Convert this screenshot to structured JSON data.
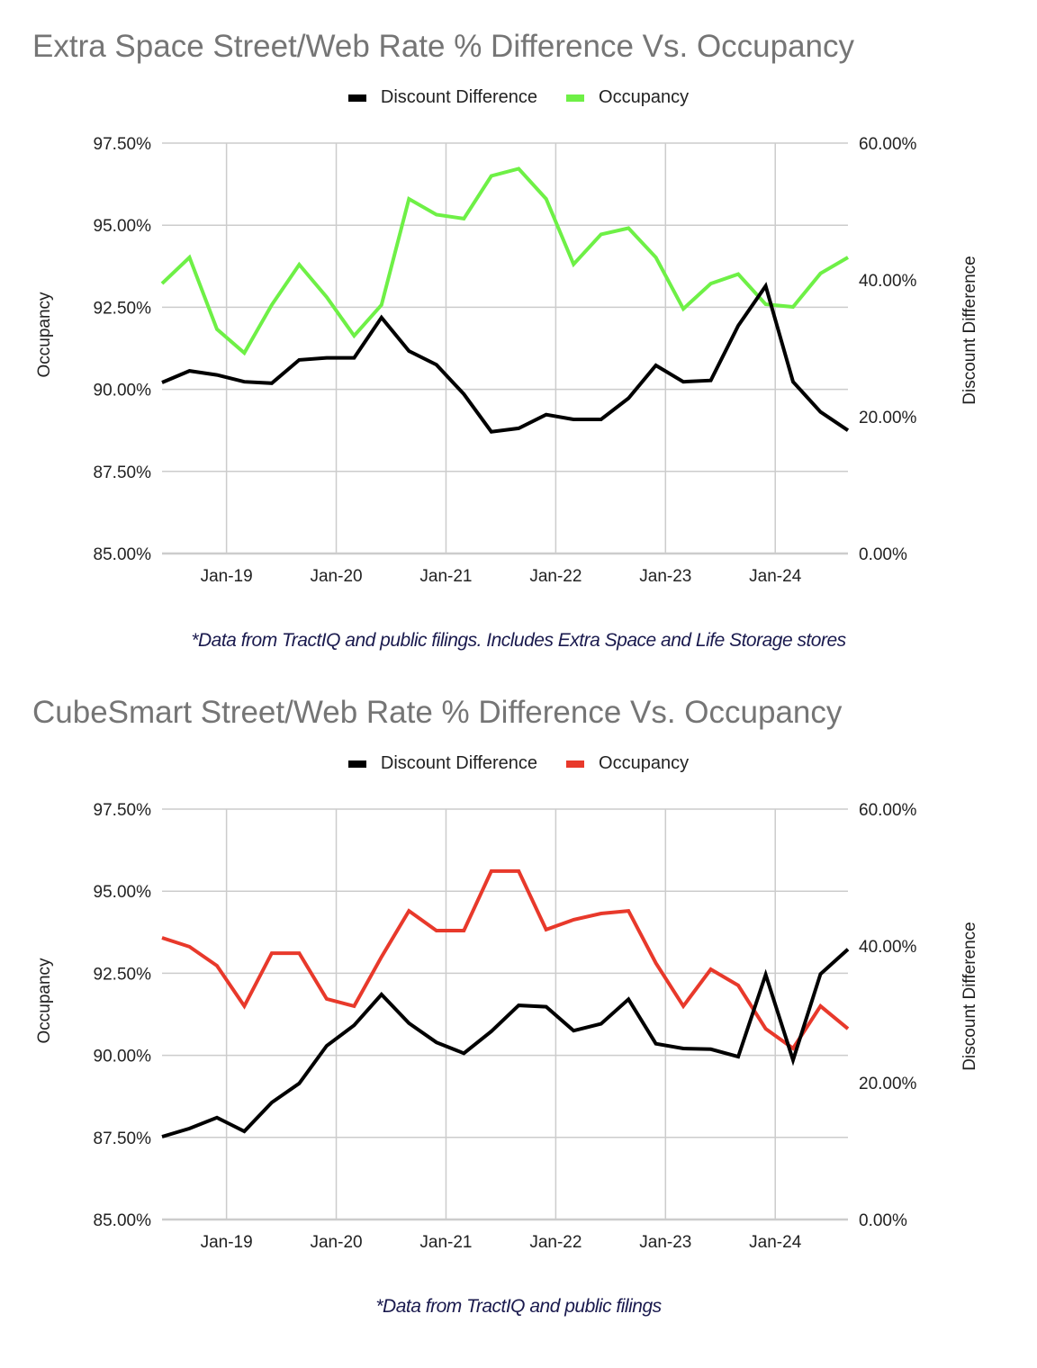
{
  "chart_data": [
    {
      "type": "line",
      "title": "Extra Space Street/Web Rate % Difference Vs. Occupancy",
      "footnote": "*Data from TractIQ and public filings. Includes Extra Space and Life Storage stores",
      "ylabel_left": "Occupancy",
      "ylabel_right": "Discount Difference",
      "xlabel": "",
      "x_ticks": [
        "Jan-19",
        "Jan-20",
        "Jan-21",
        "Jan-22",
        "Jan-23",
        "Jan-24"
      ],
      "y_left_ticks": [
        "97.50%",
        "95.00%",
        "92.50%",
        "90.00%",
        "87.50%",
        "85.00%"
      ],
      "y_right_ticks": [
        "60.00%",
        "40.00%",
        "20.00%",
        "0.00%"
      ],
      "ylim_left": [
        85,
        97.5
      ],
      "ylim_right": [
        0,
        60
      ],
      "grid": true,
      "legend_position": "top-center",
      "x_unit": "quarter",
      "x_first_tick_index": 2.35,
      "points_per_tick": 4,
      "series": [
        {
          "name": "Discount Difference",
          "axis": "right",
          "color": "#000000",
          "values": [
            25.0,
            26.7,
            26.1,
            25.1,
            24.9,
            28.3,
            28.6,
            28.6,
            34.5,
            29.6,
            27.6,
            23.3,
            17.8,
            18.3,
            20.3,
            19.6,
            19.6,
            22.7,
            27.5,
            25.1,
            25.3,
            33.3,
            39.1,
            25.1,
            20.7,
            18.0
          ]
        },
        {
          "name": "Occupancy",
          "axis": "left",
          "color": "#6ef046",
          "values": [
            93.22,
            94.02,
            91.83,
            91.11,
            92.57,
            93.8,
            92.81,
            91.63,
            92.57,
            95.8,
            95.32,
            95.2,
            96.5,
            96.72,
            95.8,
            93.81,
            94.72,
            94.91,
            94.02,
            92.45,
            93.22,
            93.51,
            92.59,
            92.51,
            93.53,
            94.02
          ]
        }
      ]
    },
    {
      "type": "line",
      "title": "CubeSmart Street/Web Rate % Difference Vs. Occupancy",
      "footnote": "*Data from TractIQ and public filings",
      "ylabel_left": "Occupancy",
      "ylabel_right": "Discount Difference",
      "xlabel": "",
      "x_ticks": [
        "Jan-19",
        "Jan-20",
        "Jan-21",
        "Jan-22",
        "Jan-23",
        "Jan-24"
      ],
      "y_left_ticks": [
        "97.50%",
        "95.00%",
        "92.50%",
        "90.00%",
        "87.50%",
        "85.00%"
      ],
      "y_right_ticks": [
        "60.00%",
        "40.00%",
        "20.00%",
        "0.00%"
      ],
      "ylim_left": [
        85,
        97.5
      ],
      "ylim_right": [
        0,
        60
      ],
      "grid": true,
      "legend_position": "top-center",
      "x_unit": "quarter",
      "x_first_tick_index": 2.35,
      "points_per_tick": 4,
      "series": [
        {
          "name": "Discount Difference",
          "axis": "right",
          "color": "#000000",
          "values": [
            12.1,
            13.3,
            14.9,
            12.9,
            17.1,
            19.9,
            25.4,
            28.4,
            32.9,
            28.7,
            25.9,
            24.3,
            27.5,
            31.3,
            31.1,
            27.6,
            28.6,
            32.2,
            25.7,
            25.0,
            24.9,
            23.8,
            35.8,
            23.3,
            35.9,
            39.5
          ]
        },
        {
          "name": "Occupancy",
          "axis": "left",
          "color": "#e8392b",
          "values": [
            93.58,
            93.31,
            92.73,
            91.5,
            93.11,
            93.11,
            91.72,
            91.5,
            93.0,
            94.4,
            93.8,
            93.8,
            95.61,
            95.61,
            93.83,
            94.13,
            94.32,
            94.4,
            92.81,
            91.5,
            92.62,
            92.13,
            90.81,
            90.21,
            91.5,
            90.81
          ]
        }
      ]
    }
  ]
}
